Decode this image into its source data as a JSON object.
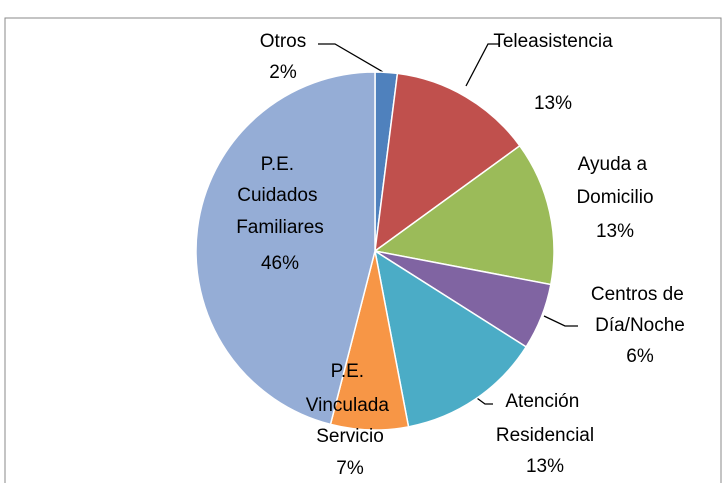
{
  "chart_data": {
    "type": "pie",
    "categories": [
      "Otros",
      "Teleasistencia",
      "Ayuda a Domicilio",
      "Centros de Día/Noche",
      "Atención Residencial",
      "P.E. Vinculada Servicio",
      "P.E. Cuidados Familiares"
    ],
    "values": [
      2,
      13,
      13,
      6,
      13,
      7,
      46
    ],
    "value_labels": [
      "2%",
      "13%",
      "13%",
      "6%",
      "13%",
      "7%",
      "46%"
    ],
    "colors": [
      "#4F81BD",
      "#C0504D",
      "#9BBB59",
      "#8064A2",
      "#4BACC6",
      "#F79646",
      "#95ADD6"
    ]
  }
}
